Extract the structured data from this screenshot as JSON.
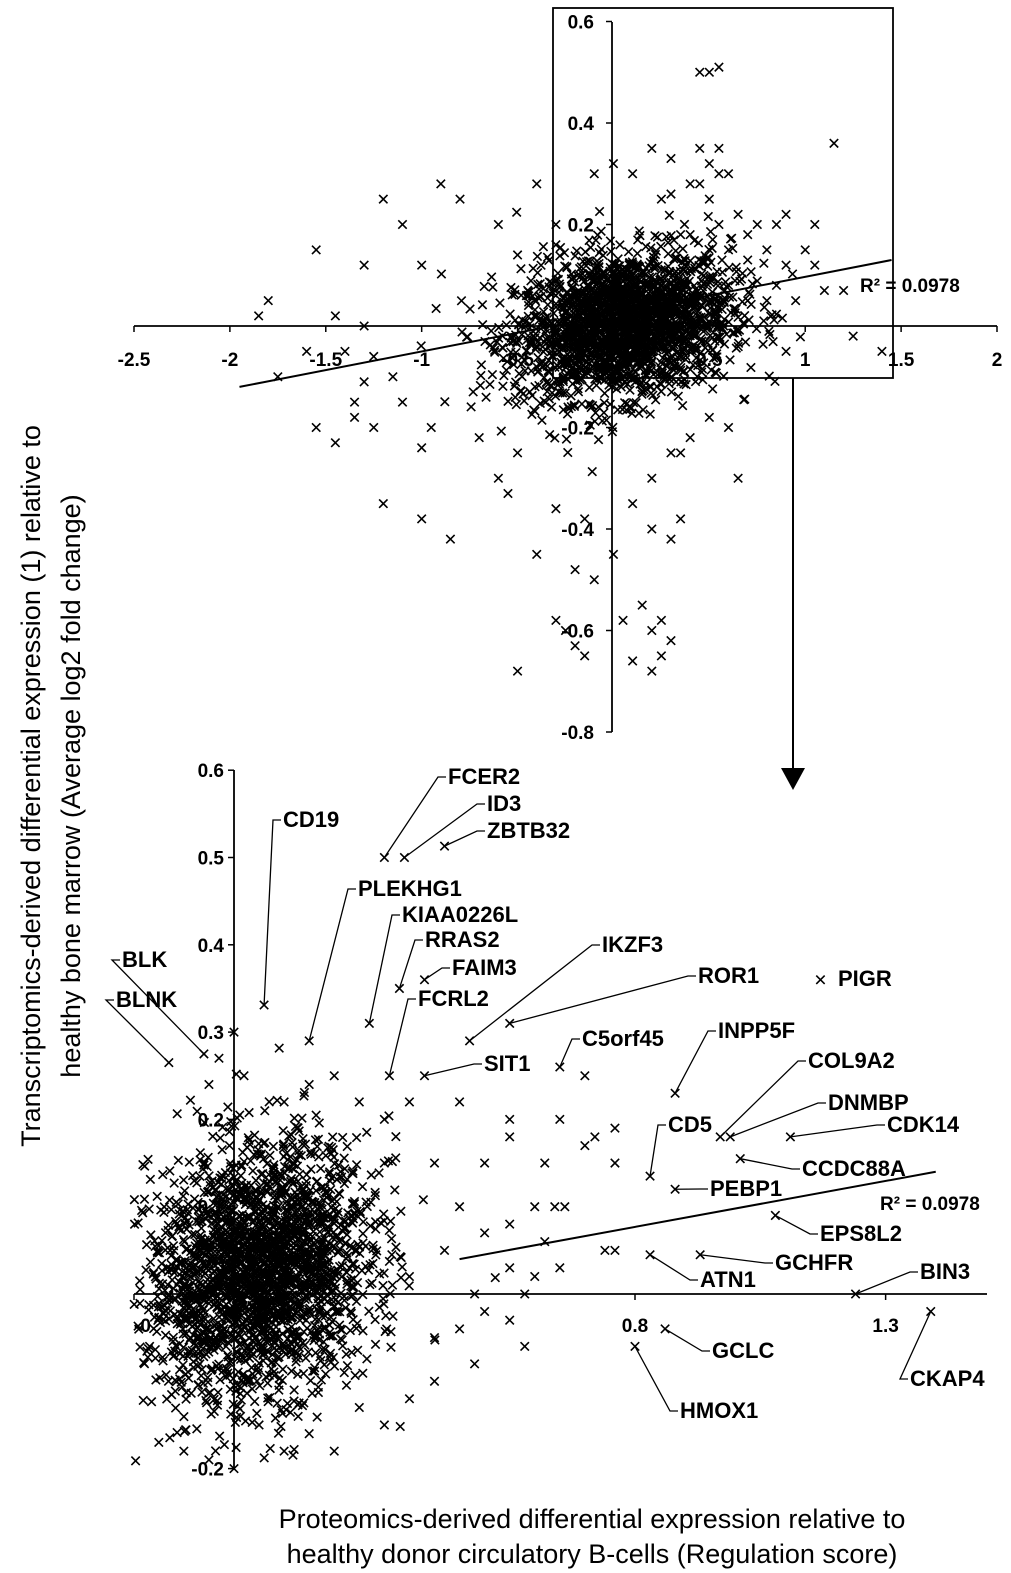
{
  "chart_data": [
    {
      "type": "scatter",
      "panel": "overview",
      "xlim": [
        -2.5,
        2
      ],
      "ylim": [
        -0.8,
        0.6
      ],
      "x_ticks": [
        "-2.5",
        "-2",
        "-1.5",
        "-1",
        "-0.5",
        "0",
        "0.5",
        "1",
        "1.5",
        "2"
      ],
      "y_ticks": [
        "0.6",
        "0.4",
        "0.2",
        "-0.2",
        "-0.4",
        "-0.6",
        "-0.8"
      ],
      "r2_label": "R² = 0.0978",
      "trendline": {
        "x": [
          -1.95,
          1.45
        ],
        "y": [
          -0.12,
          0.13
        ]
      },
      "cloud": {
        "center": [
          0.05,
          0.0
        ],
        "spread": [
          0.28,
          0.07
        ]
      },
      "outliers": [
        [
          -1.85,
          0.02
        ],
        [
          -1.6,
          -0.05
        ],
        [
          -1.75,
          -0.1
        ],
        [
          -1.4,
          -0.05
        ],
        [
          -1.45,
          0.02
        ],
        [
          -1.3,
          0.0
        ],
        [
          -1.25,
          -0.06
        ],
        [
          -1.15,
          -0.1
        ],
        [
          -1.3,
          -0.11
        ],
        [
          -1.55,
          -0.2
        ],
        [
          -1.35,
          -0.18
        ],
        [
          -1.45,
          -0.23
        ],
        [
          -1.25,
          -0.2
        ],
        [
          -1.1,
          -0.15
        ],
        [
          -1.0,
          -0.24
        ],
        [
          -0.95,
          -0.2
        ],
        [
          -1.2,
          -0.35
        ],
        [
          -1.0,
          -0.38
        ],
        [
          -0.85,
          -0.42
        ],
        [
          -1.35,
          -0.15
        ],
        [
          -0.6,
          -0.3
        ],
        [
          -0.5,
          -0.25
        ],
        [
          -0.7,
          -0.22
        ],
        [
          -0.55,
          -0.33
        ],
        [
          -0.3,
          -0.36
        ],
        [
          -0.15,
          -0.38
        ],
        [
          -0.2,
          -0.48
        ],
        [
          -0.1,
          -0.5
        ],
        [
          0.1,
          -0.35
        ],
        [
          0.2,
          -0.4
        ],
        [
          0.3,
          -0.42
        ],
        [
          0.35,
          -0.38
        ],
        [
          0.15,
          -0.55
        ],
        [
          0.25,
          -0.58
        ],
        [
          0.2,
          -0.6
        ],
        [
          0.3,
          -0.62
        ],
        [
          0.1,
          -0.66
        ],
        [
          0.2,
          -0.68
        ],
        [
          0.25,
          -0.65
        ],
        [
          0.05,
          -0.58
        ],
        [
          -0.25,
          -0.6
        ],
        [
          -0.3,
          -0.58
        ],
        [
          -0.2,
          -0.63
        ],
        [
          -0.5,
          -0.68
        ],
        [
          -0.15,
          -0.65
        ],
        [
          0.0,
          -0.45
        ],
        [
          -0.4,
          -0.45
        ],
        [
          -1.55,
          0.15
        ],
        [
          -1.2,
          0.25
        ],
        [
          -1.1,
          0.2
        ],
        [
          -0.9,
          0.28
        ],
        [
          -0.8,
          0.25
        ],
        [
          -0.6,
          0.2
        ],
        [
          -0.4,
          0.28
        ],
        [
          -0.3,
          0.2
        ],
        [
          -0.1,
          0.3
        ],
        [
          0.0,
          0.32
        ],
        [
          0.1,
          0.3
        ],
        [
          0.2,
          0.35
        ],
        [
          0.3,
          0.33
        ],
        [
          0.45,
          0.35
        ],
        [
          0.25,
          0.25
        ],
        [
          -0.5,
          0.14
        ],
        [
          -0.3,
          0.16
        ],
        [
          -1.8,
          0.05
        ],
        [
          -1.3,
          0.12
        ],
        [
          -1.0,
          0.12
        ],
        [
          0.6,
          0.15
        ],
        [
          0.6,
          0.08
        ],
        [
          0.7,
          0.18
        ],
        [
          0.75,
          0.2
        ],
        [
          0.8,
          0.15
        ],
        [
          0.85,
          0.08
        ],
        [
          0.9,
          0.12
        ],
        [
          0.95,
          0.05
        ],
        [
          1.0,
          0.15
        ],
        [
          1.05,
          0.12
        ],
        [
          1.1,
          0.07
        ],
        [
          1.05,
          0.2
        ],
        [
          0.9,
          0.22
        ],
        [
          0.8,
          0.05
        ],
        [
          0.7,
          0.05
        ],
        [
          0.65,
          0.22
        ],
        [
          0.55,
          0.2
        ],
        [
          0.4,
          0.18
        ],
        [
          1.2,
          0.07
        ],
        [
          0.7,
          0.13
        ],
        [
          0.5,
          0.25
        ],
        [
          0.45,
          0.5
        ],
        [
          0.5,
          0.5
        ],
        [
          0.55,
          0.51
        ],
        [
          0.45,
          0.28
        ],
        [
          0.55,
          0.3
        ],
        [
          0.4,
          0.28
        ],
        [
          0.35,
          0.18
        ],
        [
          0.3,
          0.26
        ],
        [
          0.5,
          0.32
        ],
        [
          0.55,
          0.35
        ],
        [
          0.6,
          0.3
        ],
        [
          1.15,
          0.36
        ],
        [
          0.85,
          0.2
        ],
        [
          1.25,
          -0.02
        ],
        [
          0.9,
          -0.05
        ],
        [
          1.4,
          -0.05
        ],
        [
          0.6,
          -0.2
        ],
        [
          0.65,
          -0.3
        ],
        [
          0.3,
          -0.25
        ],
        [
          0.5,
          -0.18
        ],
        [
          0.4,
          -0.22
        ],
        [
          0.2,
          -0.3
        ],
        [
          0.35,
          -0.25
        ]
      ]
    },
    {
      "type": "scatter",
      "panel": "zoomed",
      "xlim": [
        -0.2,
        1.5
      ],
      "ylim": [
        -0.2,
        0.6
      ],
      "x_ticks": [
        "-0",
        "0.8",
        "1.3"
      ],
      "y_ticks": [
        "0.6",
        "0.5",
        "0.4",
        "0.3",
        "0.2",
        "0.1",
        "-0.2"
      ],
      "r2_label": "R² = 0.0978",
      "trendline": {
        "x": [
          0.45,
          1.4
        ],
        "y": [
          0.04,
          0.14
        ]
      },
      "cloud": {
        "center": [
          0.05,
          0.02
        ],
        "spread": [
          0.11,
          0.07
        ]
      },
      "labeled_points": [
        {
          "gene": "FCER2",
          "x": 0.3,
          "y": 0.5
        },
        {
          "gene": "ID3",
          "x": 0.34,
          "y": 0.5
        },
        {
          "gene": "ZBTB32",
          "x": 0.42,
          "y": 0.513
        },
        {
          "gene": "CD19",
          "x": 0.06,
          "y": 0.331
        },
        {
          "gene": "PLEKHG1",
          "x": 0.15,
          "y": 0.29
        },
        {
          "gene": "KIAA0226L",
          "x": 0.27,
          "y": 0.31
        },
        {
          "gene": "RRAS2",
          "x": 0.33,
          "y": 0.35
        },
        {
          "gene": "FAIM3",
          "x": 0.38,
          "y": 0.36
        },
        {
          "gene": "FCRL2",
          "x": 0.31,
          "y": 0.25
        },
        {
          "gene": "IKZF3",
          "x": 0.47,
          "y": 0.29
        },
        {
          "gene": "ROR1",
          "x": 0.55,
          "y": 0.31
        },
        {
          "gene": "PIGR",
          "x": 1.17,
          "y": 0.36
        },
        {
          "gene": "SIT1",
          "x": 0.38,
          "y": 0.25
        },
        {
          "gene": "C5orf45",
          "x": 0.65,
          "y": 0.26
        },
        {
          "gene": "INPP5F",
          "x": 0.88,
          "y": 0.23
        },
        {
          "gene": "COL9A2",
          "x": 0.97,
          "y": 0.18
        },
        {
          "gene": "DNMBP",
          "x": 0.99,
          "y": 0.18
        },
        {
          "gene": "CDK14",
          "x": 1.11,
          "y": 0.18
        },
        {
          "gene": "CCDC88A",
          "x": 1.01,
          "y": 0.155
        },
        {
          "gene": "CD5",
          "x": 0.83,
          "y": 0.135
        },
        {
          "gene": "PEBP1",
          "x": 0.88,
          "y": 0.12
        },
        {
          "gene": "EPS8L2",
          "x": 1.08,
          "y": 0.09
        },
        {
          "gene": "GCHFR",
          "x": 0.93,
          "y": 0.045
        },
        {
          "gene": "ATN1",
          "x": 0.83,
          "y": 0.045
        },
        {
          "gene": "BIN3",
          "x": 1.24,
          "y": 0.0
        },
        {
          "gene": "GCLC",
          "x": 0.86,
          "y": -0.04
        },
        {
          "gene": "HMOX1",
          "x": 0.8,
          "y": -0.06
        },
        {
          "gene": "CKAP4",
          "x": 1.39,
          "y": -0.02
        },
        {
          "gene": "BLK",
          "x": -0.06,
          "y": 0.275
        },
        {
          "gene": "BLNK",
          "x": -0.13,
          "y": 0.265
        }
      ],
      "outliers": [
        [
          0.55,
          0.2
        ],
        [
          0.55,
          0.18
        ],
        [
          0.65,
          0.2
        ],
        [
          0.7,
          0.25
        ],
        [
          0.62,
          0.15
        ],
        [
          0.7,
          0.17
        ],
        [
          0.72,
          0.18
        ],
        [
          0.76,
          0.19
        ],
        [
          0.76,
          0.15
        ],
        [
          0.66,
          0.1
        ],
        [
          0.64,
          0.1
        ],
        [
          0.6,
          0.1
        ],
        [
          0.5,
          0.15
        ],
        [
          0.45,
          0.22
        ],
        [
          0.45,
          0.1
        ],
        [
          0.55,
          0.08
        ],
        [
          0.62,
          0.06
        ],
        [
          0.5,
          0.07
        ],
        [
          0.74,
          0.05
        ],
        [
          0.76,
          0.05
        ],
        [
          0.55,
          0.03
        ],
        [
          0.6,
          0.02
        ],
        [
          0.65,
          0.03
        ],
        [
          0.5,
          -0.02
        ],
        [
          0.55,
          -0.03
        ],
        [
          0.45,
          -0.04
        ],
        [
          0.58,
          -0.06
        ],
        [
          0.48,
          -0.08
        ],
        [
          0.4,
          -0.05
        ],
        [
          0.4,
          -0.1
        ],
        [
          0.35,
          -0.12
        ],
        [
          0.3,
          -0.15
        ],
        [
          0.25,
          -0.13
        ],
        [
          0.2,
          -0.18
        ],
        [
          0.15,
          -0.16
        ],
        [
          0.1,
          -0.18
        ],
        [
          0.05,
          -0.15
        ],
        [
          0.0,
          -0.2
        ],
        [
          -0.05,
          -0.19
        ],
        [
          -0.1,
          -0.18
        ],
        [
          -0.15,
          -0.17
        ],
        [
          0.03,
          -0.1
        ],
        [
          0.12,
          -0.11
        ],
        [
          0.22,
          -0.09
        ],
        [
          0.3,
          0.2
        ],
        [
          0.25,
          0.22
        ],
        [
          0.2,
          0.25
        ],
        [
          0.15,
          0.24
        ],
        [
          0.1,
          0.22
        ],
        [
          0.02,
          0.25
        ],
        [
          -0.03,
          0.27
        ],
        [
          -0.05,
          0.24
        ],
        [
          0.0,
          0.3
        ],
        [
          0.35,
          0.22
        ],
        [
          0.4,
          0.15
        ],
        [
          0.3,
          0.15
        ],
        [
          0.42,
          0.05
        ],
        [
          0.35,
          0.02
        ],
        [
          0.58,
          0.0
        ],
        [
          0.48,
          0.0
        ]
      ]
    }
  ],
  "axes": {
    "y_title": [
      "Transcriptomics-derived differential expression (1) relative to",
      "healthy bone marrow (Average log2 fold change)"
    ],
    "x_title": [
      "Proteomics-derived differential expression relative to",
      "healthy donor circulatory B-cells (Regulation score)"
    ]
  }
}
